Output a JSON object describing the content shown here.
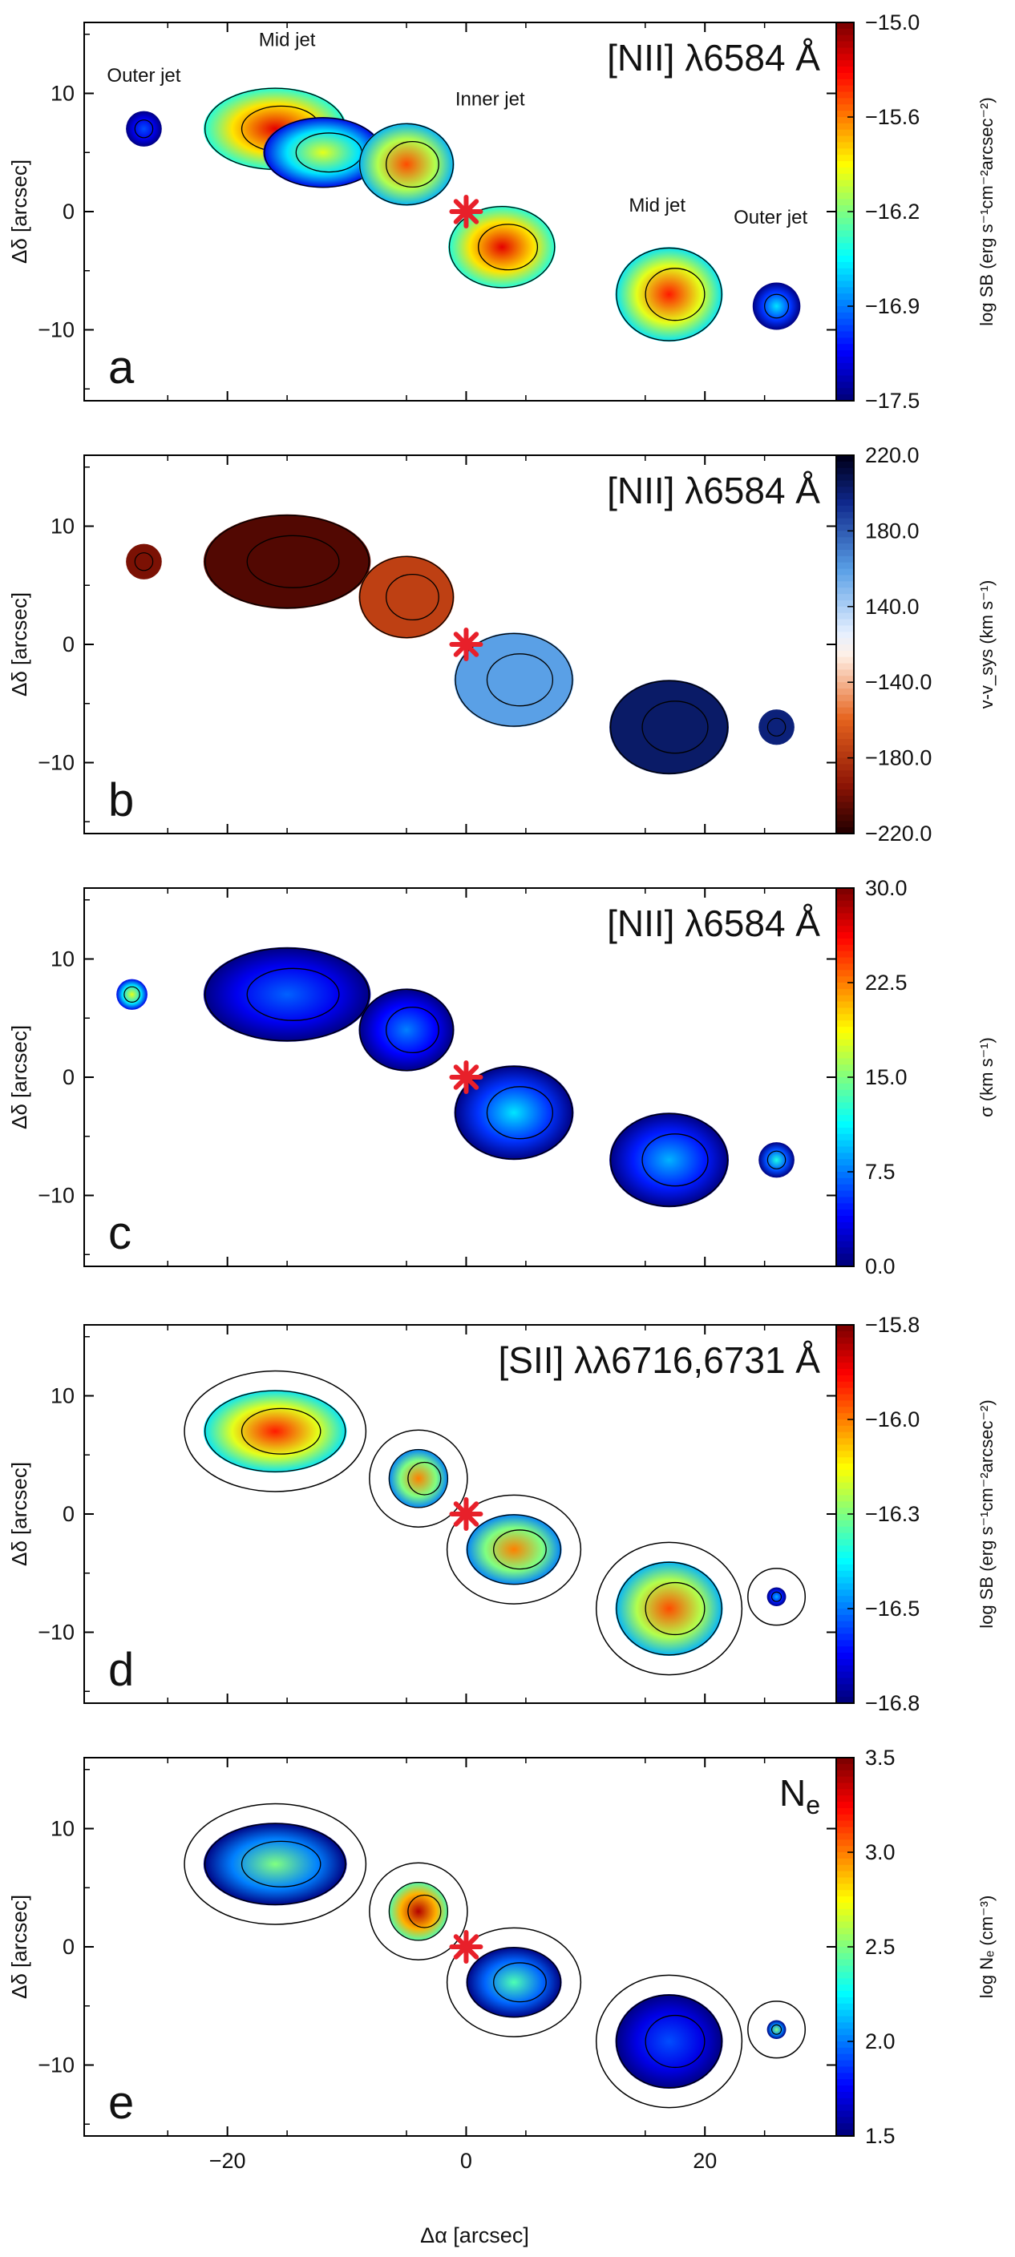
{
  "chart_data": [
    {
      "type": "heatmap",
      "panel": "a",
      "title": "[NII] λ6584 Å",
      "quantity": "surface brightness",
      "xlabel": "Δα [arcsec]",
      "ylabel": "Δδ [arcsec]",
      "xlim": [
        -32,
        31
      ],
      "ylim": [
        -16,
        16
      ],
      "xticks": [
        -20,
        0,
        20
      ],
      "yticks": [
        10,
        0,
        -10
      ],
      "colorbar": {
        "label": "log SB (erg s⁻¹cm⁻²arcsec⁻²)",
        "ticks": [
          "-15.0",
          "-15.6",
          "-16.2",
          "-16.9",
          "-17.5"
        ],
        "range": [
          -17.5,
          -15.0
        ],
        "colormap": "jet"
      },
      "annotations": [
        "Outer jet",
        "Mid jet",
        "Inner jet",
        "Mid jet",
        "Outer jet"
      ],
      "star_position": [
        0,
        0
      ],
      "blobs": [
        {
          "x": -16,
          "y": 7,
          "rx": 6,
          "ry": 3.5,
          "value": 0.9
        },
        {
          "x": -12,
          "y": 5,
          "rx": 5,
          "ry": 3,
          "value": 0.6
        },
        {
          "x": -5,
          "y": 4,
          "rx": 4,
          "ry": 3.5,
          "value": 0.8
        },
        {
          "x": 3,
          "y": -3,
          "rx": 4.5,
          "ry": 3.5,
          "value": 0.9
        },
        {
          "x": 17,
          "y": -7,
          "rx": 4.5,
          "ry": 4,
          "value": 0.85
        },
        {
          "x": -27,
          "y": 7,
          "rx": 1.5,
          "ry": 1.5,
          "value": 0.2
        },
        {
          "x": 26,
          "y": -8,
          "rx": 2,
          "ry": 2,
          "value": 0.35
        }
      ]
    },
    {
      "type": "heatmap",
      "panel": "b",
      "title": "[NII] λ6584 Å",
      "quantity": "velocity",
      "xlabel": "Δα [arcsec]",
      "ylabel": "Δδ [arcsec]",
      "xlim": [
        -32,
        31
      ],
      "ylim": [
        -16,
        16
      ],
      "xticks": [
        -20,
        0,
        20
      ],
      "yticks": [
        10,
        0,
        -10
      ],
      "colorbar": {
        "label": "v-v_sys (km s⁻¹)",
        "ticks": [
          "220.0",
          "180.0",
          "140.0",
          "-140.0",
          "-180.0",
          "-220.0"
        ],
        "tick_colors": [
          "#cc0000",
          "#cc0000",
          "#cc0000",
          "#0000cc",
          "#0000cc",
          "#0000cc"
        ],
        "colormap": "diverging"
      },
      "star_position": [
        0,
        0
      ],
      "blobs": [
        {
          "x": -15,
          "y": 7,
          "rx": 7,
          "ry": 4,
          "value": 0.05
        },
        {
          "x": -5,
          "y": 4,
          "rx": 4,
          "ry": 3.5,
          "value": 0.22
        },
        {
          "x": 4,
          "y": -3,
          "rx": 5,
          "ry": 4,
          "value": 0.7
        },
        {
          "x": 17,
          "y": -7,
          "rx": 5,
          "ry": 4,
          "value": 0.92
        },
        {
          "x": -27,
          "y": 7,
          "rx": 1.5,
          "ry": 1.5,
          "value": 0.1
        },
        {
          "x": 26,
          "y": -7,
          "rx": 1.5,
          "ry": 1.5,
          "value": 0.9
        }
      ]
    },
    {
      "type": "heatmap",
      "panel": "c",
      "title": "[NII] λ6584 Å",
      "quantity": "velocity dispersion",
      "xlabel": "Δα [arcsec]",
      "ylabel": "Δδ [arcsec]",
      "xlim": [
        -32,
        31
      ],
      "ylim": [
        -16,
        16
      ],
      "xticks": [
        -20,
        0,
        20
      ],
      "yticks": [
        10,
        0,
        -10
      ],
      "colorbar": {
        "label": "σ (km s⁻¹)",
        "ticks": [
          "30.0",
          "22.5",
          "15.0",
          "7.5",
          "0.0"
        ],
        "range": [
          0,
          30
        ],
        "colormap": "jet"
      },
      "star_position": [
        0,
        0
      ],
      "blobs": [
        {
          "x": -15,
          "y": 7,
          "rx": 7,
          "ry": 4,
          "value": 0.22
        },
        {
          "x": -5,
          "y": 4,
          "rx": 4,
          "ry": 3.5,
          "value": 0.25
        },
        {
          "x": 4,
          "y": -3,
          "rx": 5,
          "ry": 4,
          "value": 0.35
        },
        {
          "x": 17,
          "y": -7,
          "rx": 5,
          "ry": 4,
          "value": 0.3
        },
        {
          "x": -28,
          "y": 7,
          "rx": 1.3,
          "ry": 1.3,
          "value": 0.6
        },
        {
          "x": 26,
          "y": -7,
          "rx": 1.5,
          "ry": 1.5,
          "value": 0.4
        }
      ]
    },
    {
      "type": "heatmap",
      "panel": "d",
      "title": "[SII] λλ6716,6731 Å",
      "quantity": "surface brightness",
      "xlabel": "Δα [arcsec]",
      "ylabel": "Δδ [arcsec]",
      "xlim": [
        -32,
        31
      ],
      "ylim": [
        -16,
        16
      ],
      "xticks": [
        -20,
        0,
        20
      ],
      "yticks": [
        10,
        0,
        -10
      ],
      "colorbar": {
        "label": "log SB (erg s⁻¹cm⁻²arcsec⁻²)",
        "ticks": [
          "-15.8",
          "-16.0",
          "-16.3",
          "-16.5",
          "-16.8"
        ],
        "range": [
          -16.8,
          -15.8
        ],
        "colormap": "jet"
      },
      "star_position": [
        0,
        0
      ],
      "blobs": [
        {
          "x": -16,
          "y": 7,
          "rx": 6,
          "ry": 3.5,
          "value": 0.85
        },
        {
          "x": -4,
          "y": 3,
          "rx": 2.5,
          "ry": 2.5,
          "value": 0.75
        },
        {
          "x": 4,
          "y": -3,
          "rx": 4,
          "ry": 3,
          "value": 0.75
        },
        {
          "x": 17,
          "y": -8,
          "rx": 4.5,
          "ry": 4,
          "value": 0.8
        },
        {
          "x": 26,
          "y": -7,
          "rx": 0.8,
          "ry": 0.8,
          "value": 0.3
        }
      ]
    },
    {
      "type": "heatmap",
      "panel": "e",
      "title": "N",
      "title_sub": "e",
      "quantity": "electron density",
      "xlabel": "Δα [arcsec]",
      "ylabel": "Δδ [arcsec]",
      "xlim": [
        -32,
        31
      ],
      "ylim": [
        -16,
        16
      ],
      "xticks": [
        -20,
        0,
        20
      ],
      "yticks": [
        10,
        0,
        -10
      ],
      "colorbar": {
        "label": "log Nₑ (cm⁻³)",
        "ticks": [
          "3.5",
          "3.0",
          "2.5",
          "2.0",
          "1.5"
        ],
        "range": [
          1.5,
          3.5
        ],
        "colormap": "jet"
      },
      "star_position": [
        0,
        0
      ],
      "blobs": [
        {
          "x": -16,
          "y": 7,
          "rx": 6,
          "ry": 3.5,
          "value": 0.5
        },
        {
          "x": -4,
          "y": 3,
          "rx": 2.5,
          "ry": 2.5,
          "value": 0.95
        },
        {
          "x": 4,
          "y": -3,
          "rx": 4,
          "ry": 3,
          "value": 0.45
        },
        {
          "x": 17,
          "y": -8,
          "rx": 4.5,
          "ry": 4,
          "value": 0.2
        },
        {
          "x": 26,
          "y": -7,
          "rx": 0.8,
          "ry": 0.8,
          "value": 0.5
        }
      ]
    }
  ],
  "xaxis_title": "Δα [arcsec]",
  "colors": {
    "star": "#e8202a",
    "contour": "#000000"
  }
}
